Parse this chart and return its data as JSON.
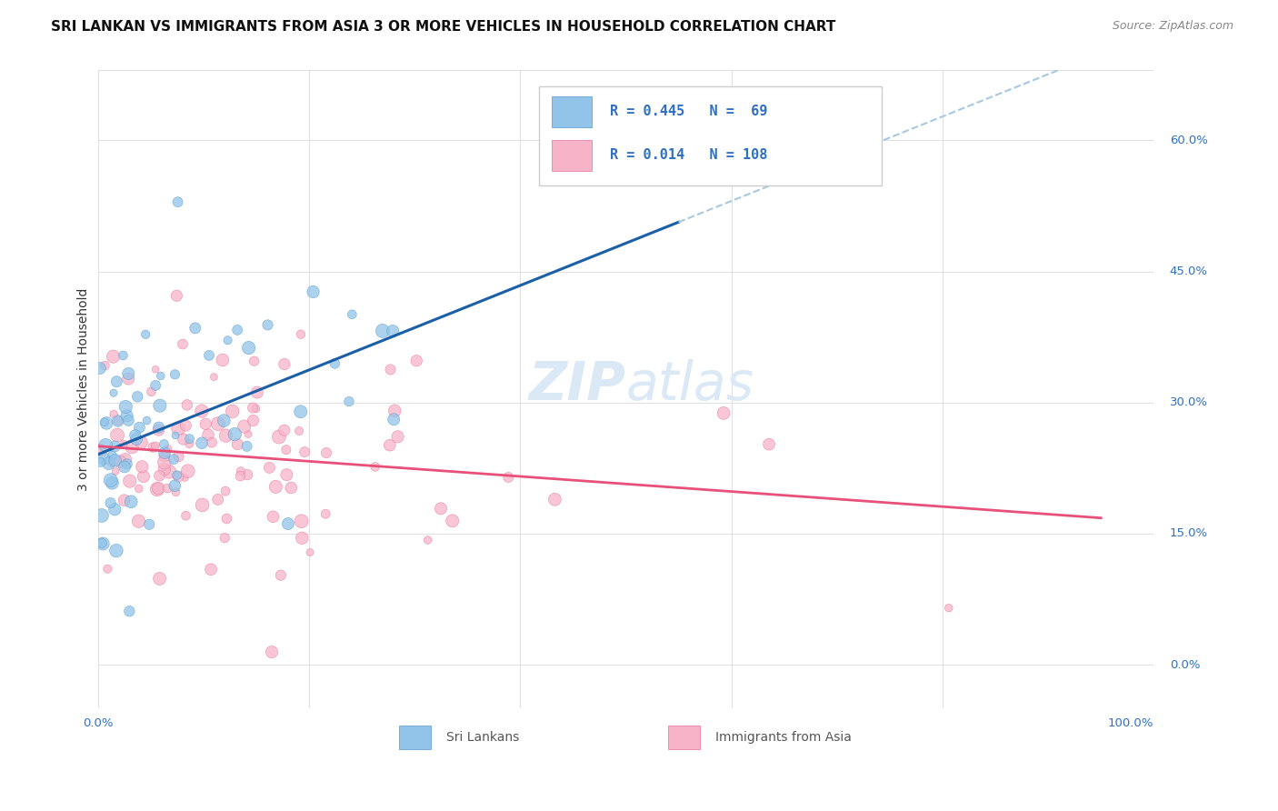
{
  "title": "SRI LANKAN VS IMMIGRANTS FROM ASIA 3 OR MORE VEHICLES IN HOUSEHOLD CORRELATION CHART",
  "source": "Source: ZipAtlas.com",
  "ylabel": "3 or more Vehicles in Household",
  "xlim": [
    0.0,
    100.0
  ],
  "ylim": [
    -5.0,
    68.0
  ],
  "yticks": [
    0.0,
    15.0,
    30.0,
    45.0,
    60.0
  ],
  "ytick_labels_right": [
    "0.0%",
    "15.0%",
    "30.0%",
    "45.0%",
    "60.0%"
  ],
  "blue_R": 0.445,
  "blue_N": 69,
  "pink_R": 0.014,
  "pink_N": 108,
  "blue_color": "#91c4e8",
  "pink_color": "#f7b3c8",
  "blue_edge_color": "#5599cc",
  "pink_edge_color": "#e87099",
  "blue_line_color": "#1a5fa8",
  "pink_line_color": "#e8507a",
  "dashed_line_color": "#a8c8e0",
  "background_color": "#ffffff",
  "grid_color": "#e0e0e0",
  "watermark_color": "#dbe8f5",
  "legend_text_color": "#3070c0",
  "legend_edge_color": "#cccccc",
  "blue_seed": 42,
  "pink_seed": 123,
  "title_color": "#111111",
  "source_color": "#888888",
  "label_color": "#333333",
  "axis_label_color": "#3070c0",
  "bottom_label_color": "#555555"
}
